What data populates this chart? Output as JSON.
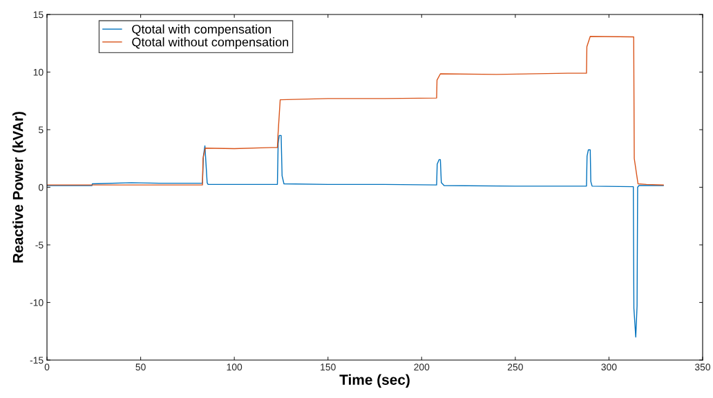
{
  "chart_data": {
    "type": "line",
    "xlabel": "Time (sec)",
    "ylabel": "Reactive Power (kVAr)",
    "xlim": [
      0,
      350
    ],
    "xticks": [
      0,
      50,
      100,
      150,
      200,
      250,
      300,
      350
    ],
    "ylim": [
      -15,
      15
    ],
    "yticks": [
      -15,
      -10,
      -5,
      0,
      5,
      10,
      15
    ],
    "grid": false,
    "legend": "top left",
    "marker": "none",
    "line_style": "solid",
    "series": [
      {
        "name": "Qtotal with compensation",
        "color": "#0072bd",
        "x": [
          0,
          24,
          24.2,
          45,
          60,
          83,
          83.5,
          84.3,
          85.5,
          86,
          100,
          123,
          123.4,
          124,
          125,
          125.5,
          126.5,
          150,
          180,
          208,
          208.3,
          209.3,
          210,
          210.5,
          212,
          250,
          288,
          288.3,
          289,
          290,
          290.3,
          291,
          313,
          313.3,
          314.3,
          315,
          315.3,
          316,
          329
        ],
        "values": [
          0.15,
          0.15,
          0.3,
          0.4,
          0.35,
          0.35,
          2.7,
          3.6,
          0.4,
          0.25,
          0.25,
          0.25,
          3.8,
          4.5,
          4.5,
          1.0,
          0.3,
          0.25,
          0.25,
          0.2,
          2.0,
          2.4,
          2.4,
          0.4,
          0.15,
          0.1,
          0.1,
          2.7,
          3.25,
          3.25,
          0.5,
          0.1,
          0.05,
          -10.5,
          -13,
          -10.3,
          0,
          0.15,
          0.15
        ]
      },
      {
        "name": "Qtotal without compensation",
        "color": "#d95319",
        "x": [
          0,
          40,
          83,
          83.3,
          84.5,
          100,
          120,
          123,
          123.3,
          124.5,
          150,
          180,
          208,
          208.2,
          210,
          240,
          278,
          288,
          288.2,
          290,
          313.2,
          313.5,
          315.5,
          320,
          329
        ],
        "values": [
          0.2,
          0.2,
          0.2,
          2.5,
          3.4,
          3.35,
          3.45,
          3.45,
          4.5,
          7.6,
          7.7,
          7.7,
          7.75,
          9.3,
          9.85,
          9.8,
          9.9,
          9.9,
          12.2,
          13.1,
          13.05,
          2.5,
          0.3,
          0.25,
          0.2
        ]
      }
    ]
  }
}
